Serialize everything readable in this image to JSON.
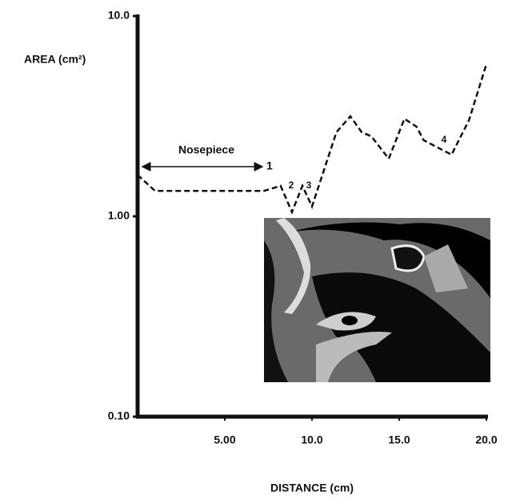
{
  "chart_data": {
    "type": "line",
    "y_label": "AREA (cm²)",
    "x_label": "DISTANCE (cm)",
    "x": [
      0,
      1.0,
      7.25,
      8.2,
      8.85,
      9.45,
      10.0,
      11.4,
      12.2,
      12.85,
      13.4,
      14.4,
      15.3,
      16.0,
      16.4,
      18.0,
      19.0,
      20.0
    ],
    "values": [
      1.61,
      1.34,
      1.34,
      1.42,
      1.05,
      1.42,
      1.12,
      2.63,
      3.16,
      2.63,
      2.51,
      1.94,
      3.07,
      2.8,
      2.4,
      2.03,
      3.02,
      5.75
    ],
    "color": "#111111",
    "dashed": true,
    "yscale": "log",
    "xlim": [
      0,
      20
    ],
    "ylim": [
      0.1,
      10
    ],
    "xticks": [
      {
        "value": 5,
        "label": "5.00"
      },
      {
        "value": 10,
        "label": "10.0"
      },
      {
        "value": 15,
        "label": "15.0"
      },
      {
        "value": 20,
        "label": "20.0"
      }
    ],
    "yticks": [
      {
        "value": 0.1,
        "label": "0.10"
      },
      {
        "value": 1,
        "label": "1.00"
      },
      {
        "value": 10,
        "label": "10.0"
      }
    ],
    "annotations": [
      "Nosepiece",
      "1",
      "2",
      "3",
      "4"
    ]
  }
}
